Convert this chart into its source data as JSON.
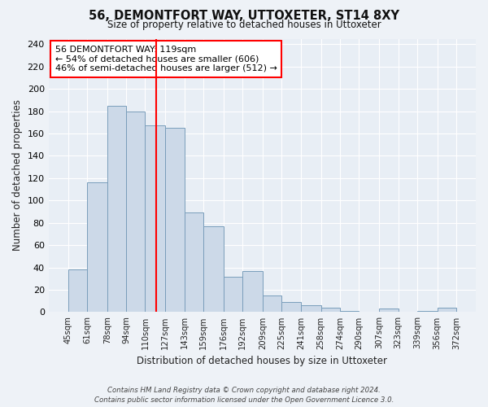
{
  "title": "56, DEMONTFORT WAY, UTTOXETER, ST14 8XY",
  "subtitle": "Size of property relative to detached houses in Uttoxeter",
  "xlabel": "Distribution of detached houses by size in Uttoxeter",
  "ylabel": "Number of detached properties",
  "bin_edges": [
    45,
    61,
    78,
    94,
    110,
    127,
    143,
    159,
    176,
    192,
    209,
    225,
    241,
    258,
    274,
    290,
    307,
    323,
    339,
    356,
    372
  ],
  "bar_heights": [
    38,
    116,
    185,
    180,
    167,
    165,
    89,
    77,
    32,
    37,
    15,
    9,
    6,
    4,
    1,
    0,
    3,
    0,
    1,
    4
  ],
  "bar_color": "#ccd9e8",
  "bar_edge_color": "#7a9ebb",
  "vline_x": 119,
  "vline_color": "red",
  "ylim": [
    0,
    245
  ],
  "annotation_text": "56 DEMONTFORT WAY: 119sqm\n← 54% of detached houses are smaller (606)\n46% of semi-detached houses are larger (512) →",
  "annotation_box_color": "white",
  "annotation_box_edge_color": "red",
  "footer_line1": "Contains HM Land Registry data © Crown copyright and database right 2024.",
  "footer_line2": "Contains public sector information licensed under the Open Government Licence 3.0.",
  "tick_labels": [
    "45sqm",
    "61sqm",
    "78sqm",
    "94sqm",
    "110sqm",
    "127sqm",
    "143sqm",
    "159sqm",
    "176sqm",
    "192sqm",
    "209sqm",
    "225sqm",
    "241sqm",
    "258sqm",
    "274sqm",
    "290sqm",
    "307sqm",
    "323sqm",
    "339sqm",
    "356sqm",
    "372sqm"
  ],
  "background_color": "#eef2f7",
  "plot_background_color": "#e8eef5",
  "yticks": [
    0,
    20,
    40,
    60,
    80,
    100,
    120,
    140,
    160,
    180,
    200,
    220,
    240
  ]
}
